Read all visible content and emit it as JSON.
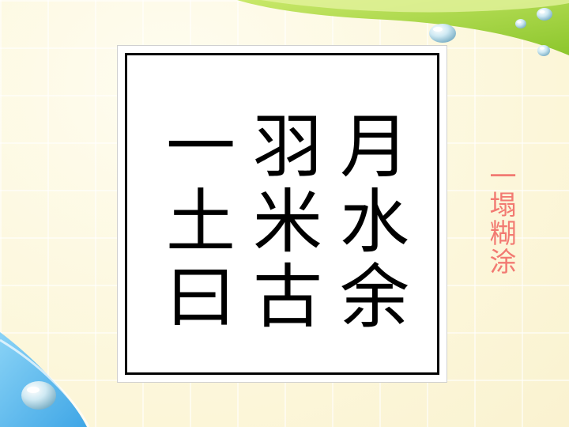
{
  "puzzle": {
    "rows": [
      [
        "一",
        "羽",
        "月"
      ],
      [
        "土",
        "米",
        "水"
      ],
      [
        "曰",
        "古",
        "余"
      ]
    ]
  },
  "side_caption": "一塌糊涂",
  "colors": {
    "background": "#fdf9e2",
    "green_band": "#9fd23a",
    "blue_corner": "#58b8ec",
    "caption": "#f27a72"
  }
}
